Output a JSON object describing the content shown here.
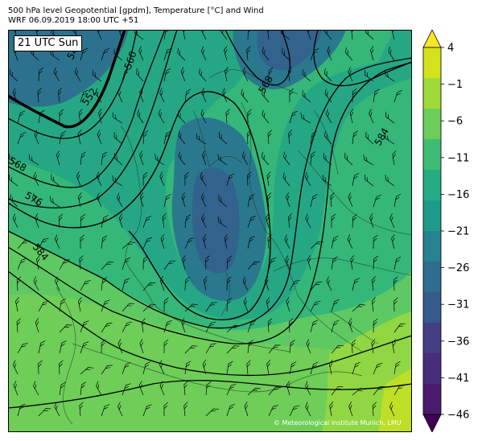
{
  "header": {
    "line1": "500 hPa level Geopotential [gpdm], Temperature [°C] and Wind",
    "line2": "WRF 06.09.2019 18:00 UTC +51"
  },
  "map": {
    "time_label": "21 UTC Sun",
    "credit": "© Meteorological Institute Munich, LMU",
    "contour_labels": [
      "544",
      "552",
      "560",
      "568",
      "568",
      "576",
      "584",
      "584"
    ]
  },
  "colorbar": {
    "ticks": [
      "4",
      "−1",
      "−6",
      "−11",
      "−16",
      "−21",
      "−26",
      "−31",
      "−36",
      "−41",
      "−46"
    ],
    "colors": [
      "#f5e626",
      "#d4e21a",
      "#a0da39",
      "#6ccd5a",
      "#3fbc73",
      "#25ac82",
      "#1f9a8a",
      "#26828e",
      "#2e6d8e",
      "#375a8c",
      "#433e85",
      "#472d7b",
      "#481b6d",
      "#440154"
    ]
  }
}
